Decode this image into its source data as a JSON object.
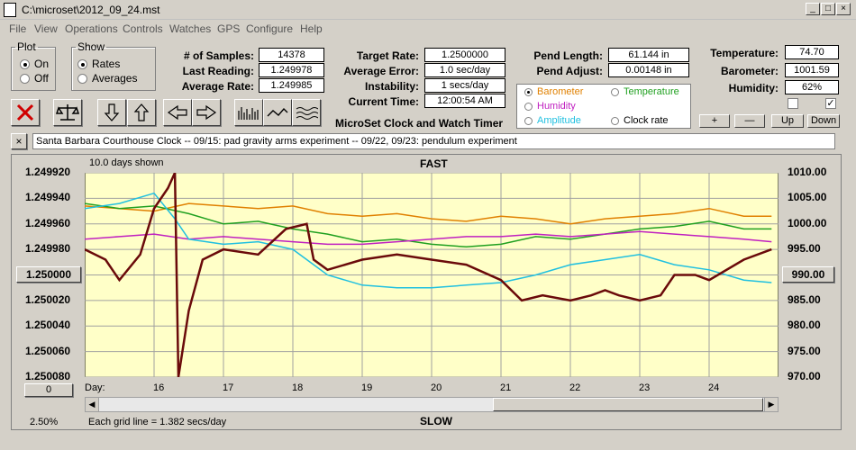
{
  "window": {
    "title": "C:\\microset\\2012_09_24.mst"
  },
  "menus": [
    "File",
    "View",
    "Operations",
    "Controls",
    "Watches",
    "GPS",
    "Configure",
    "Help"
  ],
  "plot_group": {
    "legend": "Plot",
    "on": "On",
    "off": "Off",
    "selected": "On"
  },
  "show_group": {
    "legend": "Show",
    "rates": "Rates",
    "averages": "Averages",
    "selected": "Rates"
  },
  "stats": {
    "samples_label": "# of Samples:",
    "samples": "14378",
    "last_label": "Last Reading:",
    "last": "1.249978",
    "avg_label": "Average Rate:",
    "avg": "1.249985"
  },
  "target": {
    "rate_label": "Target Rate:",
    "rate": "1.2500000",
    "err_label": "Average Error:",
    "err": "1.0 sec/day",
    "inst_label": "Instability:",
    "inst": "1 secs/day",
    "time_label": "Current Time:",
    "time": "12:00:54 AM"
  },
  "pend": {
    "len_label": "Pend Length:",
    "len": "61.144 in",
    "adj_label": "Pend Adjust:",
    "adj": "0.00148 in"
  },
  "env": {
    "temp_label": "Temperature:",
    "temp": "74.70",
    "baro_label": "Barometer:",
    "baro": "1001.59",
    "hum_label": "Humidity:",
    "hum": "62%"
  },
  "app_name": "MicroSet Clock and Watch Timer",
  "options": [
    {
      "label": "Barometer",
      "color": "#e08000",
      "selected": true
    },
    {
      "label": "Temperature",
      "color": "#20a020",
      "selected": false
    },
    {
      "label": "Humidity",
      "color": "#c020c0",
      "selected": false
    },
    {
      "label": "Clock rate",
      "color": "#000000",
      "selected": false
    },
    {
      "label": "Amplitude",
      "color": "#20c0e0",
      "selected": false
    }
  ],
  "scale_buttons": {
    "plus": "+",
    "minus": "—",
    "up": "Up",
    "down": "Down"
  },
  "notes": "Santa Barbara Courthouse Clock  --  09/15: pad gravity arms experiment  --  09/22, 09/23: pendulum experiment",
  "plot": {
    "days_shown": "10.0 days shown",
    "fast": "FAST",
    "slow": "SLOW",
    "scale_pct": "2.50%",
    "grid_note": "Each grid line = 1.382 secs/day",
    "left_button": "1.250000",
    "right_button": "990.00",
    "zero_button": "0",
    "day_label": "Day:"
  },
  "chart_data": {
    "type": "line",
    "y_left": {
      "ticks": [
        "1.249920",
        "1.249940",
        "1.249960",
        "1.249980",
        "1.250000",
        "1.250020",
        "1.250040",
        "1.250060",
        "1.250080"
      ],
      "range": [
        1.24992,
        1.25008
      ],
      "inverted": true
    },
    "y_right": {
      "ticks": [
        "1010.00",
        "1005.00",
        "1000.00",
        "995.00",
        "990.00",
        "985.00",
        "980.00",
        "975.00",
        "970.00"
      ],
      "range": [
        970,
        1010
      ]
    },
    "x_ticks": [
      "16",
      "17",
      "18",
      "19",
      "20",
      "21",
      "22",
      "23",
      "24"
    ],
    "x_range": [
      15,
      25
    ],
    "background": "#ffffc8",
    "grid": true,
    "series": [
      {
        "color": "#e08000",
        "x": [
          15.0,
          15.5,
          16.0,
          16.5,
          17.0,
          17.5,
          18.0,
          18.5,
          19.0,
          19.5,
          20.0,
          20.5,
          21.0,
          21.5,
          22.0,
          22.5,
          23.0,
          23.5,
          24.0,
          24.5,
          24.9
        ],
        "y": [
          1003.5,
          1003,
          1002.5,
          1004,
          1003.5,
          1003,
          1003.5,
          1002,
          1001.5,
          1002,
          1001,
          1000.5,
          1001.5,
          1001,
          1000,
          1001,
          1001.5,
          1002,
          1003,
          1001.5,
          1001.5
        ]
      },
      {
        "color": "#20a020",
        "x": [
          15.0,
          15.5,
          16.0,
          16.5,
          17.0,
          17.5,
          18.0,
          18.5,
          19.0,
          19.5,
          20.0,
          20.5,
          21.0,
          21.5,
          22.0,
          22.5,
          23.0,
          23.5,
          24.0,
          24.5,
          24.9
        ],
        "y": [
          1004,
          1003,
          1003.5,
          1002,
          1000,
          1000.5,
          999,
          998,
          996.5,
          997,
          996,
          995.5,
          996,
          997.5,
          997,
          998,
          999,
          999.5,
          1000.5,
          999,
          999
        ]
      },
      {
        "color": "#c020c0",
        "x": [
          15.0,
          15.5,
          16.0,
          16.5,
          17.0,
          17.5,
          18.0,
          18.5,
          19.0,
          19.5,
          20.0,
          20.5,
          21.0,
          21.5,
          22.0,
          22.5,
          23.0,
          23.5,
          24.0,
          24.5,
          24.9
        ],
        "y": [
          997,
          997.5,
          998,
          997,
          997.5,
          997,
          996.5,
          996,
          996,
          996.5,
          997,
          997.5,
          997.5,
          998,
          997.5,
          998,
          998.5,
          998,
          997.5,
          997,
          996.5
        ]
      },
      {
        "color": "#20c0e0",
        "x": [
          15.0,
          15.5,
          16.0,
          16.3,
          16.5,
          17.0,
          17.5,
          18.0,
          18.3,
          18.5,
          19.0,
          19.5,
          20.0,
          20.5,
          21.0,
          21.5,
          22.0,
          22.5,
          23.0,
          23.5,
          24.0,
          24.5,
          24.9
        ],
        "y": [
          1003,
          1004,
          1006,
          1001,
          997,
          996,
          996.5,
          995,
          992,
          990,
          988,
          987.5,
          987.5,
          988,
          988.5,
          990,
          992,
          993,
          994,
          992,
          991,
          989,
          988.5
        ]
      },
      {
        "color": "#6a0a0a",
        "x": [
          15.0,
          15.3,
          15.5,
          15.8,
          16.0,
          16.2,
          16.3,
          16.35,
          16.5,
          16.7,
          17.0,
          17.5,
          17.9,
          18.2,
          18.3,
          18.5,
          19.0,
          19.5,
          20.0,
          20.5,
          21.0,
          21.3,
          21.6,
          22.0,
          22.3,
          22.5,
          22.7,
          23.0,
          23.3,
          23.5,
          23.8,
          24.0,
          24.5,
          24.9
        ],
        "y": [
          995,
          993,
          989,
          994,
          1003,
          1007,
          1011,
          970,
          983,
          993,
          995,
          994,
          999,
          1000,
          993,
          991,
          993,
          994,
          993,
          992,
          989,
          985,
          986,
          985,
          986,
          987,
          986,
          985,
          986,
          990,
          990,
          989,
          993,
          995
        ]
      }
    ]
  }
}
